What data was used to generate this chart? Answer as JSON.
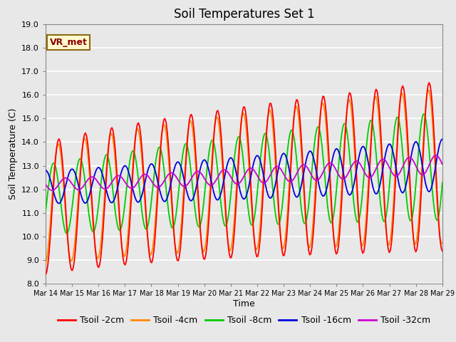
{
  "title": "Soil Temperatures Set 1",
  "xlabel": "Time",
  "ylabel": "Soil Temperature (C)",
  "ylim": [
    8.0,
    19.0
  ],
  "yticks": [
    8.0,
    9.0,
    10.0,
    11.0,
    12.0,
    13.0,
    14.0,
    15.0,
    16.0,
    17.0,
    18.0,
    19.0
  ],
  "xtick_labels": [
    "Mar 14",
    "Mar 15",
    "Mar 16",
    "Mar 17",
    "Mar 18",
    "Mar 19",
    "Mar 20",
    "Mar 21",
    "Mar 22",
    "Mar 23",
    "Mar 24",
    "Mar 25",
    "Mar 26",
    "Mar 27",
    "Mar 28",
    "Mar 29"
  ],
  "annotation": "VR_met",
  "series_colors": [
    "#ff0000",
    "#ff8800",
    "#00cc00",
    "#0000dd",
    "#cc00cc"
  ],
  "series_labels": [
    "Tsoil -2cm",
    "Tsoil -4cm",
    "Tsoil -8cm",
    "Tsoil -16cm",
    "Tsoil -32cm"
  ],
  "background_color": "#e8e8e8",
  "grid_color": "#ffffff",
  "fig_facecolor": "#e8e8e8",
  "title_fontsize": 12,
  "axis_fontsize": 9,
  "tick_fontsize": 8,
  "legend_fontsize": 9
}
